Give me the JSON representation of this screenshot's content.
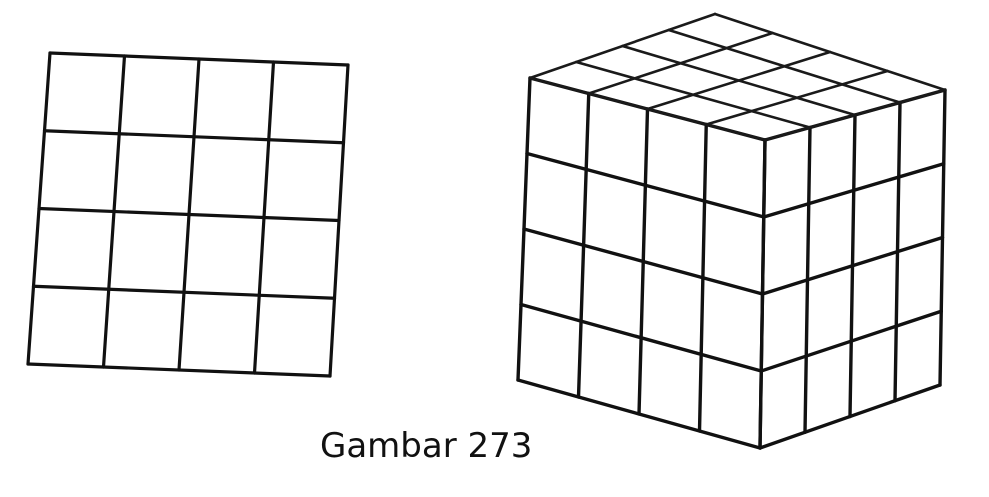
{
  "caption": "Gambar 273",
  "figures": {
    "left": {
      "kind": "flat-grid",
      "rows": 4,
      "cols": 4
    },
    "right": {
      "kind": "cube-of-cubes",
      "layers": 4,
      "rows": 4,
      "cols": 4
    }
  },
  "colors": {
    "ink": "#111111",
    "background": "#ffffff"
  }
}
